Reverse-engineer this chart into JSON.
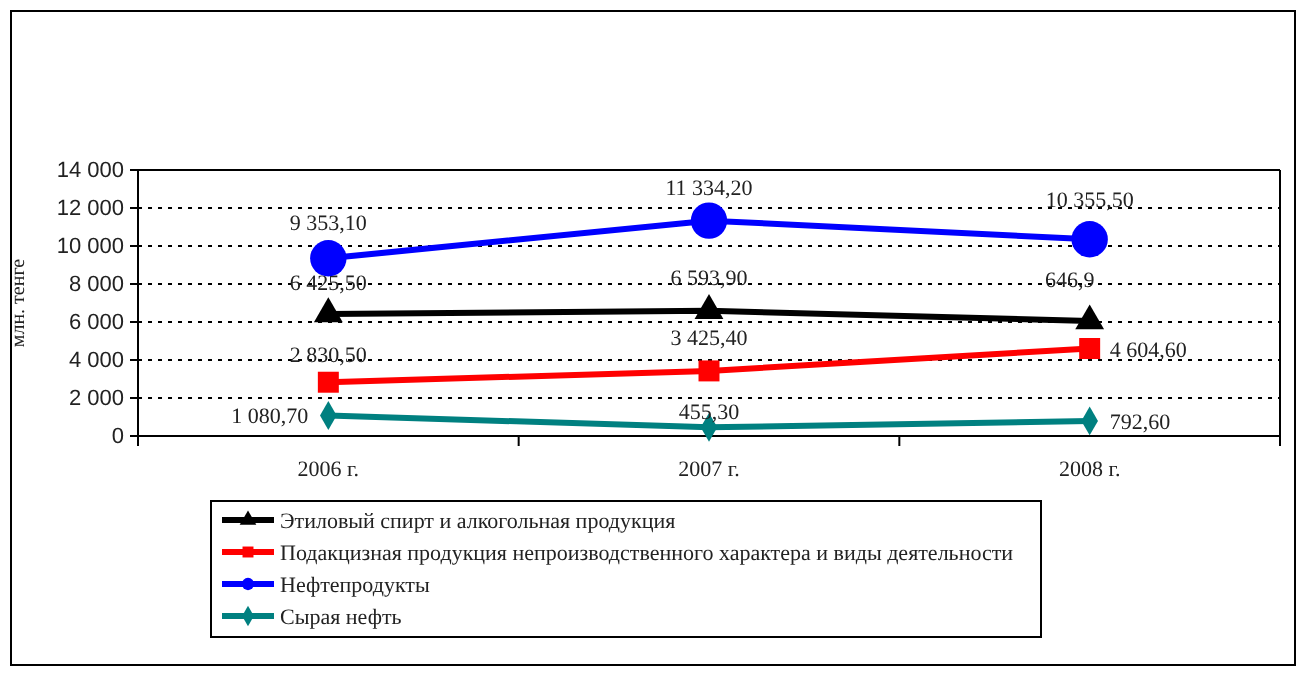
{
  "chart_data": {
    "type": "line",
    "ylabel": "млн. тенге",
    "categories": [
      "2006 г.",
      "2007 г.",
      "2008 г."
    ],
    "series": [
      {
        "name": "Этиловый спирт и алкогольная продукция",
        "color": "#000000",
        "marker": "triangle",
        "values": [
          6425.5,
          6593.9,
          6050
        ],
        "value_labels": [
          "6 425,50",
          "6 593,90",
          null
        ]
      },
      {
        "name": "Подакцизная продукция непроизводственного характера и виды деятельности",
        "color": "#ff0000",
        "marker": "square",
        "values": [
          2830.5,
          3425.4,
          4604.6
        ],
        "value_labels": [
          "2 830,50",
          "3 425,40",
          "4 604,60"
        ]
      },
      {
        "name": "Нефтепродукты",
        "color": "#0000ff",
        "marker": "circle",
        "values": [
          9353.1,
          11334.2,
          10355.5
        ],
        "value_labels": [
          "9 353,10",
          "11 334,20",
          "10 355,50"
        ]
      },
      {
        "name": "Сырая нефть",
        "color": "#008080",
        "marker": "diamond",
        "values": [
          1080.7,
          455.3,
          792.6
        ],
        "value_labels": [
          "1 080,70",
          "455,30",
          "792,60"
        ]
      }
    ],
    "ylim": [
      0,
      14000
    ],
    "yticks": [
      {
        "value": 0,
        "label": "0"
      },
      {
        "value": 2000,
        "label": "2 000"
      },
      {
        "value": 4000,
        "label": "4 000"
      },
      {
        "value": 6000,
        "label": "6 000"
      },
      {
        "value": 8000,
        "label": "8 000"
      },
      {
        "value": 10000,
        "label": "10 000"
      },
      {
        "value": 12000,
        "label": "12 000"
      },
      {
        "value": 14000,
        "label": "14 000"
      }
    ],
    "annotations": [
      "646,9"
    ],
    "grid": "y",
    "legend": "bottom",
    "line_style": "solid"
  }
}
